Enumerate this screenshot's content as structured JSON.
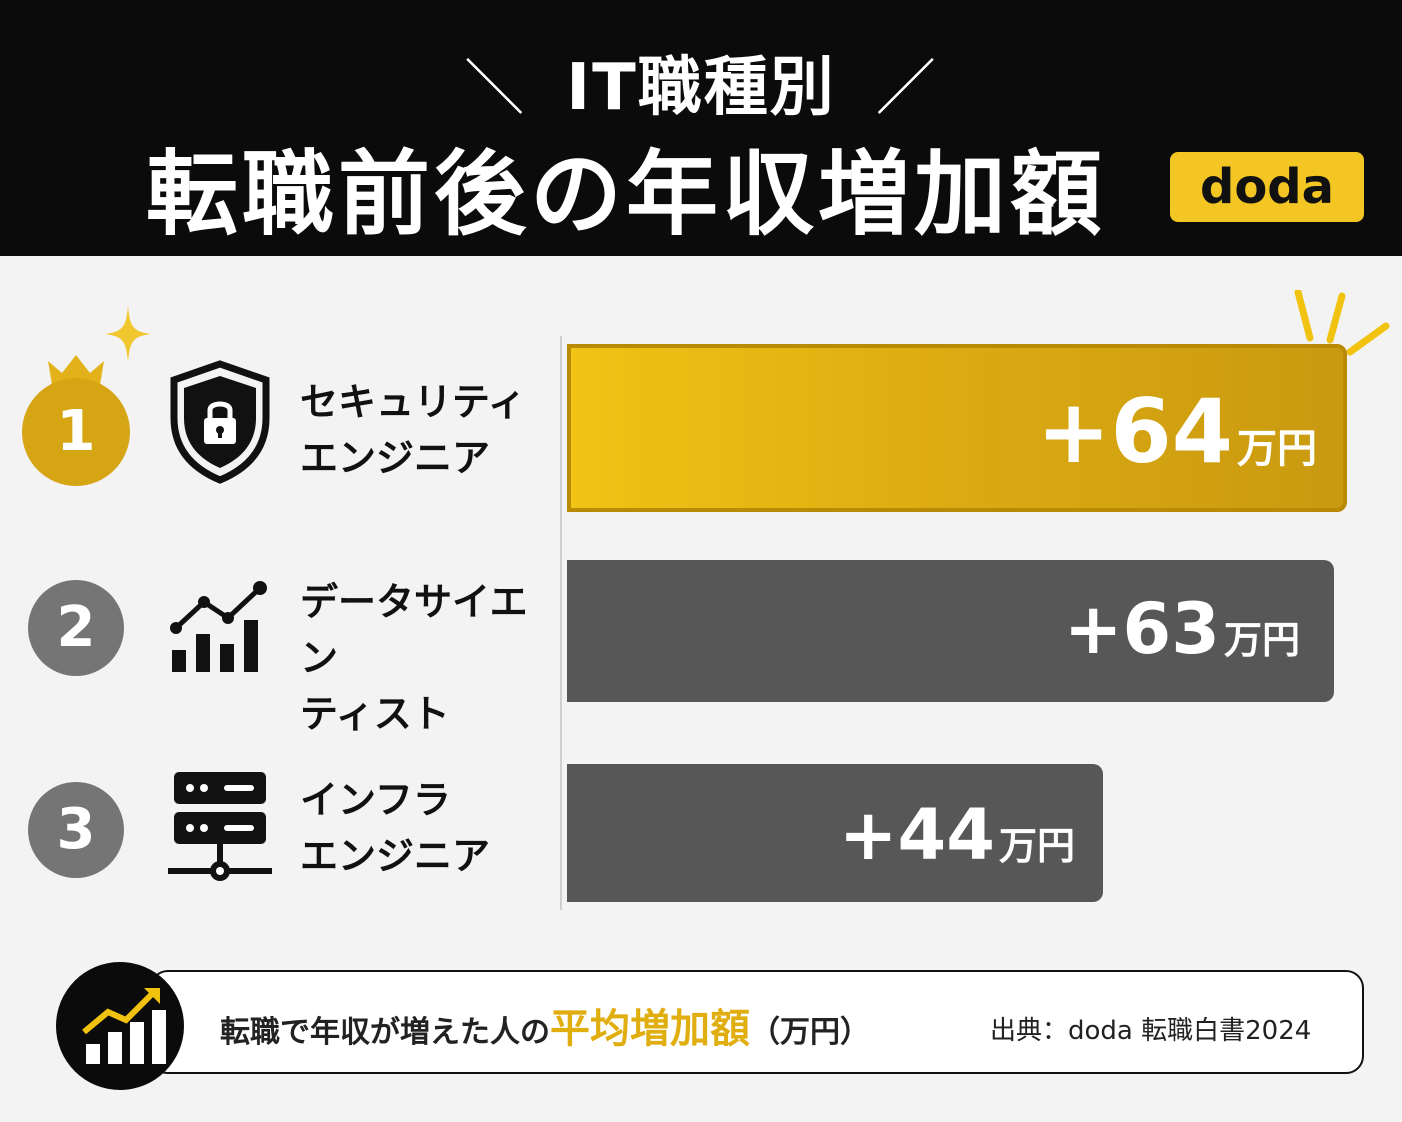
{
  "header": {
    "subtitle": "IT職種別",
    "title": "転職前後の年収増加額",
    "badge": "doda"
  },
  "chart_data": {
    "type": "bar",
    "orientation": "horizontal",
    "unit": "万円",
    "categories": [
      "セキュリティエンジニア",
      "データサイエンティスト",
      "インフラエンジニア"
    ],
    "values": [
      64,
      63,
      44
    ],
    "xlim": [
      0,
      66
    ],
    "grid": false
  },
  "rows": [
    {
      "rank": "1",
      "line1": "セキュリティ",
      "line2": "エンジニア",
      "value_text": "+64",
      "unit": "万円",
      "icon": "shield-lock-icon"
    },
    {
      "rank": "2",
      "line1": "データサイエン",
      "line2": "ティスト",
      "value_text": "+63",
      "unit": "万円",
      "icon": "chart-growth-icon"
    },
    {
      "rank": "3",
      "line1": "インフラ",
      "line2": "エンジニア",
      "value_text": "+44",
      "unit": "万円",
      "icon": "server-icon"
    }
  ],
  "footer": {
    "text_before": "転職で年収が増えた人の",
    "highlight": "平均増加額",
    "text_after": "（万円）",
    "source": "出典：doda 転職白書2024",
    "icon": "rising-chart-icon"
  },
  "colors": {
    "gold": "#dcaa12",
    "gray_bar": "#575757",
    "header_bg": "#0b0b0b",
    "badge": "#f3c623"
  }
}
